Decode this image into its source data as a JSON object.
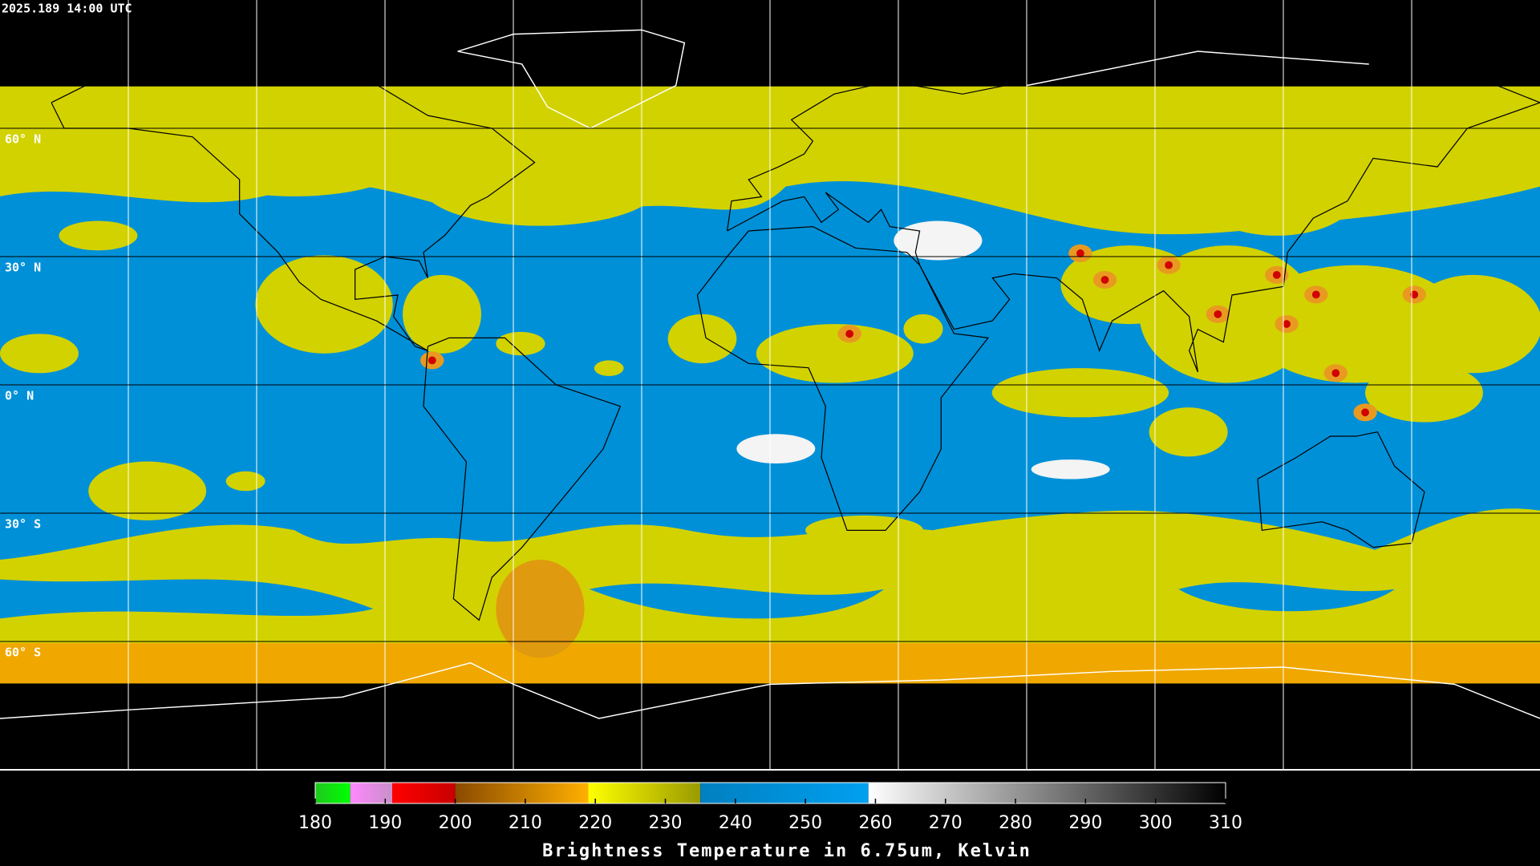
{
  "header": {
    "timestamp": "2025.189 14:00 UTC"
  },
  "grid": {
    "lat_labels": [
      "60° N",
      "30° N",
      "0° N",
      "30° S",
      "60° S"
    ]
  },
  "colorbar": {
    "title": "Brightness Temperature in 6.75um, Kelvin",
    "range": [
      180,
      310
    ],
    "ticks": [
      180,
      190,
      200,
      210,
      220,
      230,
      240,
      250,
      260,
      270,
      280,
      290,
      300,
      310
    ],
    "segments": [
      {
        "from": 180,
        "to": 185,
        "colors": [
          "#1fc81f",
          "#00ff00"
        ]
      },
      {
        "from": 185,
        "to": 191,
        "colors": [
          "#ff88ff",
          "#c890c8"
        ]
      },
      {
        "from": 191,
        "to": 200,
        "colors": [
          "#ff0000",
          "#c80000"
        ]
      },
      {
        "from": 200,
        "to": 219,
        "colors": [
          "#8a4a00",
          "#ffb000"
        ]
      },
      {
        "from": 219,
        "to": 235,
        "colors": [
          "#ffff00",
          "#9a9a00"
        ]
      },
      {
        "from": 235,
        "to": 259,
        "colors": [
          "#0080c0",
          "#00a0f0"
        ]
      },
      {
        "from": 259,
        "to": 310,
        "colors": [
          "#ffffff",
          "#000000"
        ]
      }
    ]
  }
}
